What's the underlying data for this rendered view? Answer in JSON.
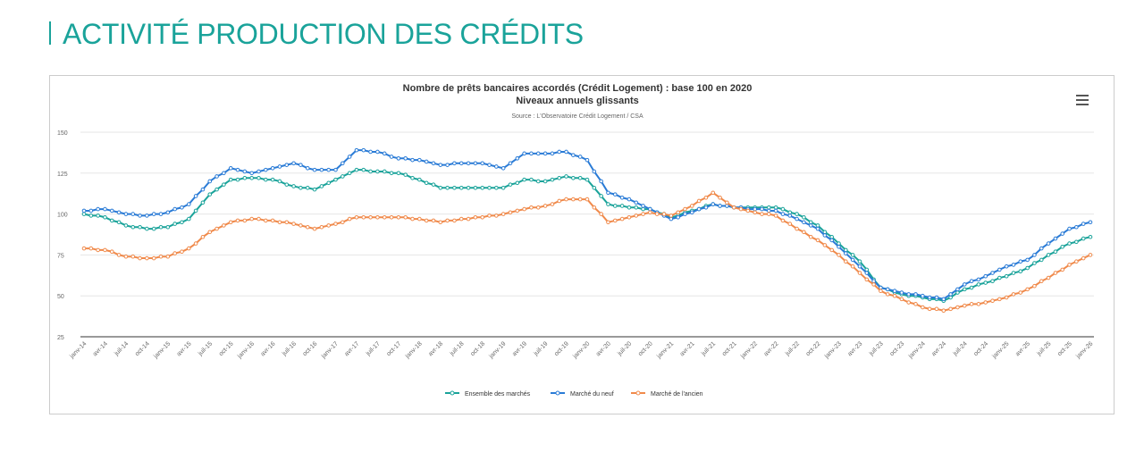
{
  "page_title": "ACTIVITÉ PRODUCTION DES CRÉDITS",
  "chart_data": {
    "type": "line",
    "title": "Nombre de prêts bancaires accordés (Crédit Logement) : base 100 en 2020",
    "subtitle": "Niveaux annuels glissants",
    "source": "Source : L'Observatoire Crédit Logement / CSA",
    "categories": [
      "janv-14",
      null,
      null,
      "avr-14",
      null,
      null,
      "juil-14",
      null,
      null,
      "oct-14",
      null,
      null,
      "janv-15",
      null,
      null,
      "avr-15",
      null,
      null,
      "juil-15",
      null,
      null,
      "oct-15",
      null,
      null,
      "janv-16",
      null,
      null,
      "avr-16",
      null,
      null,
      "juil-16",
      null,
      null,
      "oct-16",
      null,
      null,
      "janv-17",
      null,
      null,
      "avr-17",
      null,
      null,
      "juil-17",
      null,
      null,
      "oct-17",
      null,
      null,
      "janv-18",
      null,
      null,
      "avr-18",
      null,
      null,
      "juil-18",
      null,
      null,
      "oct-18",
      null,
      null,
      "janv-19",
      null,
      null,
      "avr-19",
      null,
      null,
      "juil-19",
      null,
      null,
      "oct-19",
      null,
      null,
      "janv-20",
      null,
      null,
      "avr-20",
      null,
      null,
      "juil-20",
      null,
      null,
      "oct-20",
      null,
      null,
      "janv-21",
      null,
      null,
      "avr-21",
      null,
      null,
      "juil-21",
      null,
      null,
      "oct-21",
      null,
      null,
      "janv-22",
      null,
      null,
      "avr-22",
      null,
      null,
      "juil-22",
      null,
      null,
      "oct-22",
      null,
      null,
      "janv-23",
      null,
      null,
      "avr-23",
      null,
      null,
      "juil-23",
      null,
      null,
      "oct-23",
      null,
      null,
      "janv-24",
      null,
      null,
      "avr-24",
      null,
      null,
      "juil-24",
      null,
      null,
      "oct-24",
      null,
      null,
      "janv-25",
      null,
      null,
      "avr-25",
      null,
      null,
      "juil-25",
      null,
      null,
      "oct-25",
      null,
      null,
      "janv-26"
    ],
    "series": [
      {
        "name": "Ensemble des marchés",
        "color": "#1aa39a",
        "values": [
          100,
          99,
          99,
          98,
          96,
          95,
          93,
          92,
          92,
          91,
          91,
          92,
          92,
          94,
          95,
          97,
          102,
          107,
          112,
          115,
          118,
          121,
          121,
          122,
          122,
          122,
          121,
          121,
          120,
          118,
          117,
          116,
          116,
          115,
          117,
          119,
          121,
          123,
          125,
          127,
          127,
          126,
          126,
          126,
          125,
          125,
          124,
          122,
          121,
          119,
          118,
          116,
          116,
          116,
          116,
          116,
          116,
          116,
          116,
          116,
          116,
          118,
          119,
          121,
          121,
          120,
          120,
          121,
          122,
          123,
          122,
          122,
          121,
          116,
          111,
          106,
          105,
          105,
          104,
          104,
          103,
          103,
          101,
          100,
          98,
          99,
          101,
          102,
          103,
          105,
          106,
          105,
          105,
          104,
          104,
          104,
          104,
          104,
          104,
          104,
          103,
          101,
          100,
          98,
          95,
          93,
          89,
          86,
          82,
          78,
          75,
          71,
          66,
          60,
          55,
          54,
          52,
          51,
          50,
          50,
          49,
          48,
          48,
          47,
          49,
          52,
          54,
          55,
          57,
          58,
          59,
          61,
          62,
          64,
          65,
          67,
          70,
          72,
          75,
          77,
          80,
          82,
          83,
          85,
          86
        ]
      },
      {
        "name": "Marché du neuf",
        "color": "#2a7bd6",
        "values": [
          102,
          102,
          103,
          103,
          102,
          101,
          100,
          100,
          99,
          99,
          100,
          100,
          101,
          103,
          104,
          106,
          111,
          115,
          120,
          123,
          125,
          128,
          127,
          126,
          125,
          126,
          127,
          128,
          129,
          130,
          131,
          130,
          128,
          127,
          127,
          127,
          127,
          131,
          135,
          139,
          139,
          138,
          138,
          137,
          135,
          134,
          134,
          133,
          133,
          132,
          131,
          130,
          130,
          131,
          131,
          131,
          131,
          131,
          130,
          129,
          128,
          131,
          134,
          137,
          137,
          137,
          137,
          137,
          138,
          138,
          136,
          135,
          133,
          126,
          120,
          113,
          112,
          110,
          109,
          107,
          105,
          103,
          101,
          99,
          97,
          98,
          100,
          101,
          103,
          104,
          106,
          105,
          105,
          104,
          104,
          103,
          103,
          103,
          102,
          102,
          100,
          99,
          97,
          95,
          93,
          91,
          87,
          84,
          80,
          76,
          72,
          68,
          64,
          59,
          55,
          54,
          53,
          52,
          51,
          51,
          50,
          49,
          49,
          48,
          51,
          54,
          57,
          59,
          60,
          62,
          64,
          66,
          68,
          69,
          71,
          72,
          75,
          79,
          82,
          85,
          88,
          91,
          92,
          94,
          95
        ]
      },
      {
        "name": "Marché de l'ancien",
        "color": "#f08a4b",
        "values": [
          79,
          79,
          78,
          78,
          77,
          75,
          74,
          74,
          73,
          73,
          73,
          74,
          74,
          76,
          77,
          79,
          82,
          86,
          89,
          91,
          93,
          95,
          96,
          96,
          97,
          97,
          96,
          96,
          95,
          95,
          94,
          93,
          92,
          91,
          92,
          93,
          94,
          95,
          97,
          98,
          98,
          98,
          98,
          98,
          98,
          98,
          98,
          97,
          97,
          96,
          96,
          95,
          96,
          96,
          97,
          97,
          98,
          98,
          99,
          99,
          100,
          101,
          102,
          103,
          104,
          104,
          105,
          106,
          108,
          109,
          109,
          109,
          109,
          104,
          100,
          95,
          96,
          97,
          98,
          99,
          100,
          101,
          100,
          100,
          99,
          101,
          103,
          105,
          108,
          110,
          113,
          110,
          107,
          104,
          103,
          102,
          101,
          100,
          100,
          99,
          96,
          94,
          91,
          89,
          86,
          84,
          81,
          78,
          75,
          71,
          68,
          64,
          60,
          57,
          53,
          51,
          50,
          48,
          46,
          45,
          43,
          42,
          42,
          41,
          42,
          43,
          44,
          45,
          45,
          46,
          47,
          48,
          49,
          51,
          52,
          54,
          56,
          59,
          61,
          64,
          66,
          69,
          71,
          73,
          75
        ]
      }
    ],
    "ylim": [
      25,
      150
    ],
    "yticks": [
      25,
      50,
      75,
      100,
      125,
      150
    ],
    "grid": true,
    "legend": "bottom"
  }
}
